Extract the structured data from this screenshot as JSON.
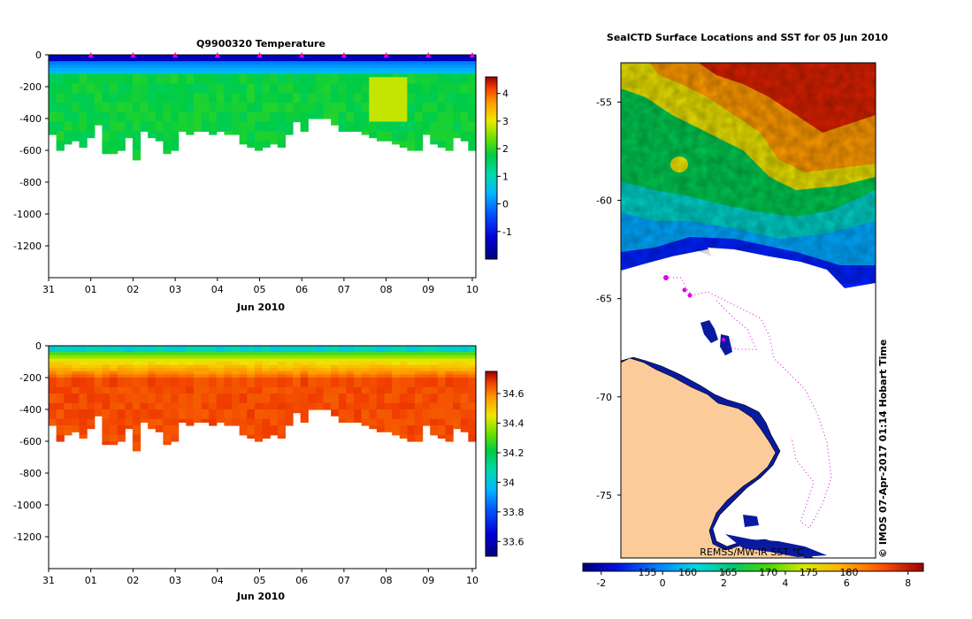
{
  "chart_data": [
    {
      "type": "heatmap",
      "title": "Q9900320  Temperature",
      "xlabel": "Jun 2010",
      "x_tick_labels": [
        "31",
        "01",
        "02",
        "03",
        "04",
        "05",
        "06",
        "07",
        "08",
        "09",
        "10"
      ],
      "y_tick_values": [
        0,
        -200,
        -400,
        -600,
        -800,
        -1000,
        -1200
      ],
      "ylim": [
        -1400,
        0
      ],
      "colorbar": {
        "min": -2,
        "max": 4.6,
        "tick_values": [
          -1,
          0,
          1,
          2,
          3,
          4
        ]
      },
      "profile_max_depth_m": [
        500,
        600,
        550,
        530,
        570,
        510,
        440,
        620,
        610,
        600,
        520,
        650,
        480,
        520,
        540,
        620,
        600,
        480,
        500,
        470,
        480,
        500,
        470,
        500,
        500,
        550,
        580,
        600,
        570,
        560,
        570,
        500,
        420,
        470,
        400,
        400,
        400,
        430,
        480,
        480,
        480,
        500,
        520,
        530,
        540,
        560,
        580,
        600,
        600,
        500,
        550,
        580,
        600,
        520,
        540,
        600
      ],
      "surface_layer_temp_c": -1.5,
      "upper_layer_temp_c": 0.2,
      "deep_layer_temp_c": 1.8,
      "warm_core_temp_c": 2.8
    },
    {
      "type": "heatmap",
      "title": "",
      "xlabel": "Jun 2010",
      "x_tick_labels": [
        "31",
        "01",
        "02",
        "03",
        "04",
        "05",
        "06",
        "07",
        "08",
        "09",
        "10"
      ],
      "y_tick_values": [
        0,
        -200,
        -400,
        -600,
        -800,
        -1000,
        -1200
      ],
      "ylim": [
        -1400,
        0
      ],
      "colorbar": {
        "min": 33.5,
        "max": 34.75,
        "tick_values": [
          33.6,
          33.8,
          34,
          34.2,
          34.4,
          34.6
        ]
      },
      "surface_salinity": 34.0,
      "deep_salinity": 34.68
    },
    {
      "type": "heatmap",
      "title": "SealCTD Surface Locations and SST for 05 Jun 2010",
      "y_tick_values": [
        -55,
        -60,
        -65,
        -70,
        -75
      ],
      "ylim": [
        -78.2,
        -53
      ],
      "colorbar_label": "REMSS/MW-IR SST °C",
      "colorbar": {
        "min": -2.6,
        "max": 8.5,
        "tick_values": [
          -2,
          0,
          2,
          4,
          6,
          8
        ],
        "inner_tick_labels": [
          "155",
          "160",
          "165",
          "170",
          "175",
          "180"
        ]
      },
      "side_note": "© IMOS 07-Apr-2017 01:14 Hobart Time"
    }
  ]
}
